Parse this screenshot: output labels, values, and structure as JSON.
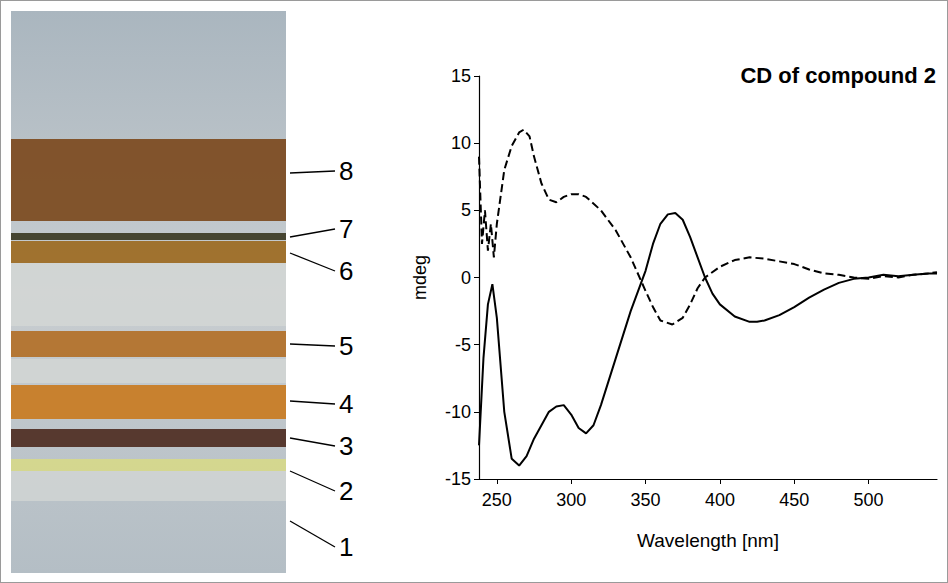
{
  "column": {
    "labels": [
      "1",
      "2",
      "3",
      "4",
      "5",
      "6",
      "7",
      "8"
    ]
  },
  "chart_data": {
    "type": "line",
    "title": "CD of compound 2",
    "x_label": "Wavelength [nm]",
    "y_label": "mdeg",
    "xlim": [
      238,
      546
    ],
    "xticks": [
      250,
      300,
      350,
      400,
      450,
      500
    ],
    "ylim": [
      -15,
      15
    ],
    "yticks": [
      -15,
      -10,
      -5,
      0,
      5,
      10,
      15
    ],
    "grid": false,
    "series": [
      {
        "color": "#000000",
        "line_style": "solid",
        "x": [
          238,
          241,
          244,
          247,
          250,
          255,
          260,
          265,
          270,
          275,
          280,
          285,
          290,
          295,
          300,
          305,
          310,
          315,
          320,
          330,
          340,
          350,
          355,
          360,
          365,
          370,
          375,
          380,
          385,
          390,
          395,
          400,
          410,
          420,
          425,
          430,
          440,
          450,
          460,
          470,
          480,
          490,
          500,
          510,
          520,
          530,
          540,
          546
        ],
        "values": [
          -12.5,
          -6,
          -2,
          -0.5,
          -3,
          -10,
          -13.5,
          -14,
          -13.3,
          -12,
          -11,
          -10,
          -9.6,
          -9.5,
          -10.2,
          -11.2,
          -11.6,
          -11,
          -9.5,
          -6,
          -2.5,
          0.5,
          2.5,
          4,
          4.7,
          4.8,
          4.3,
          3,
          1.5,
          0,
          -1.2,
          -2,
          -2.9,
          -3.3,
          -3.3,
          -3.2,
          -2.8,
          -2.2,
          -1.5,
          -0.9,
          -0.4,
          -0.1,
          0,
          0.2,
          0.1,
          0.2,
          0.3,
          0.3
        ]
      },
      {
        "color": "#000000",
        "line_style": "dashed",
        "x": [
          238,
          240,
          242,
          244,
          246,
          248,
          250,
          255,
          260,
          265,
          268,
          272,
          275,
          280,
          285,
          290,
          295,
          300,
          305,
          310,
          320,
          330,
          340,
          350,
          355,
          360,
          368,
          375,
          380,
          385,
          390,
          400,
          410,
          420,
          430,
          440,
          450,
          460,
          470,
          480,
          490,
          500,
          510,
          520,
          530,
          540,
          546
        ],
        "values": [
          9,
          2.5,
          5,
          2,
          4,
          1.5,
          4,
          8,
          9.8,
          10.8,
          11,
          10.5,
          9,
          7,
          5.8,
          5.6,
          6,
          6.2,
          6.2,
          6,
          5,
          3.5,
          1.5,
          -1,
          -2.2,
          -3.2,
          -3.5,
          -3,
          -2,
          -0.8,
          0,
          0.8,
          1.3,
          1.5,
          1.4,
          1.2,
          1,
          0.6,
          0.3,
          0.2,
          0,
          -0.1,
          0.1,
          0,
          0.2,
          0.3,
          0.4
        ]
      }
    ]
  }
}
